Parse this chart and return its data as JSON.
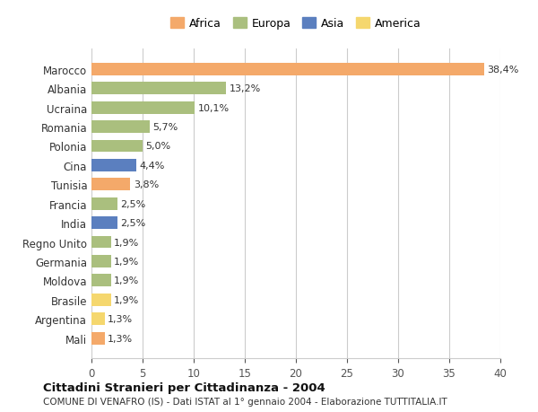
{
  "countries": [
    "Marocco",
    "Albania",
    "Ucraina",
    "Romania",
    "Polonia",
    "Cina",
    "Tunisia",
    "Francia",
    "India",
    "Regno Unito",
    "Germania",
    "Moldova",
    "Brasile",
    "Argentina",
    "Mali"
  ],
  "values": [
    38.4,
    13.2,
    10.1,
    5.7,
    5.0,
    4.4,
    3.8,
    2.5,
    2.5,
    1.9,
    1.9,
    1.9,
    1.9,
    1.3,
    1.3
  ],
  "labels": [
    "38,4%",
    "13,2%",
    "10,1%",
    "5,7%",
    "5,0%",
    "4,4%",
    "3,8%",
    "2,5%",
    "2,5%",
    "1,9%",
    "1,9%",
    "1,9%",
    "1,9%",
    "1,3%",
    "1,3%"
  ],
  "continents": [
    "Africa",
    "Europa",
    "Europa",
    "Europa",
    "Europa",
    "Asia",
    "Africa",
    "Europa",
    "Asia",
    "Europa",
    "Europa",
    "Europa",
    "America",
    "America",
    "Africa"
  ],
  "colors": {
    "Africa": "#F4A96A",
    "Europa": "#AABF7E",
    "Asia": "#5B7FBF",
    "America": "#F5D76E"
  },
  "legend_order": [
    "Africa",
    "Europa",
    "Asia",
    "America"
  ],
  "xlim": [
    0,
    40
  ],
  "xticks": [
    0,
    5,
    10,
    15,
    20,
    25,
    30,
    35,
    40
  ],
  "title": "Cittadini Stranieri per Cittadinanza - 2004",
  "subtitle": "COMUNE DI VENAFRO (IS) - Dati ISTAT al 1° gennaio 2004 - Elaborazione TUTTITALIA.IT",
  "background_color": "#ffffff",
  "grid_color": "#cccccc",
  "bar_height": 0.65
}
